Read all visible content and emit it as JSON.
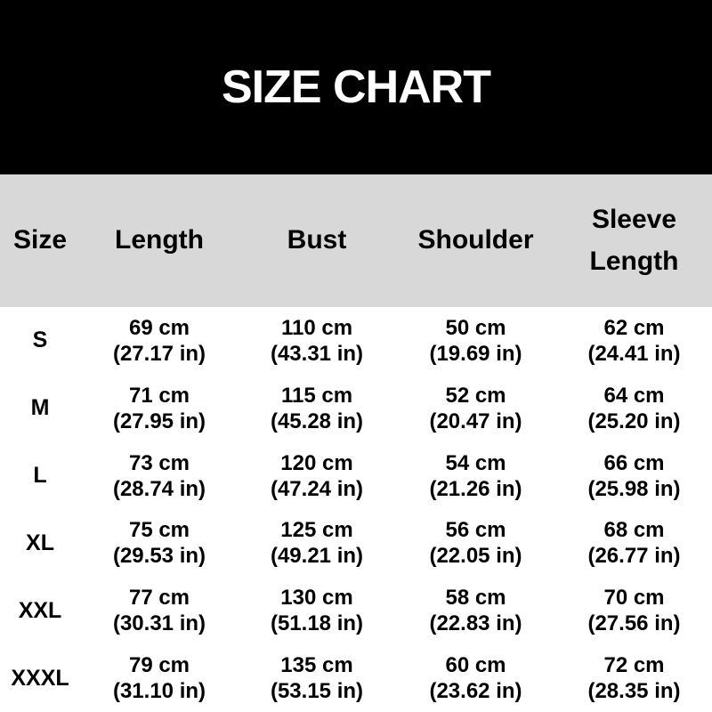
{
  "title": "SIZE CHART",
  "colors": {
    "banner_bg": "#000000",
    "banner_text": "#ffffff",
    "header_bg": "#d8d8d8",
    "body_bg": "#ffffff",
    "text": "#000000"
  },
  "table": {
    "headers": [
      "Size",
      "Length",
      "Bust",
      "Shoulder",
      "Sleeve Length"
    ],
    "rows": [
      {
        "size": "S",
        "length": {
          "cm": "69 cm",
          "in": "(27.17 in)"
        },
        "bust": {
          "cm": "110 cm",
          "in": "(43.31 in)"
        },
        "shoulder": {
          "cm": "50 cm",
          "in": "(19.69 in)"
        },
        "sleeve": {
          "cm": "62 cm",
          "in": "(24.41 in)"
        }
      },
      {
        "size": "M",
        "length": {
          "cm": "71 cm",
          "in": "(27.95 in)"
        },
        "bust": {
          "cm": "115 cm",
          "in": "(45.28 in)"
        },
        "shoulder": {
          "cm": "52 cm",
          "in": "(20.47 in)"
        },
        "sleeve": {
          "cm": "64 cm",
          "in": "(25.20 in)"
        }
      },
      {
        "size": "L",
        "length": {
          "cm": "73 cm",
          "in": "(28.74 in)"
        },
        "bust": {
          "cm": "120 cm",
          "in": "(47.24 in)"
        },
        "shoulder": {
          "cm": "54 cm",
          "in": "(21.26 in)"
        },
        "sleeve": {
          "cm": "66 cm",
          "in": "(25.98 in)"
        }
      },
      {
        "size": "XL",
        "length": {
          "cm": "75 cm",
          "in": "(29.53 in)"
        },
        "bust": {
          "cm": "125 cm",
          "in": "(49.21 in)"
        },
        "shoulder": {
          "cm": "56 cm",
          "in": "(22.05 in)"
        },
        "sleeve": {
          "cm": "68 cm",
          "in": "(26.77 in)"
        }
      },
      {
        "size": "XXL",
        "length": {
          "cm": "77 cm",
          "in": "(30.31 in)"
        },
        "bust": {
          "cm": "130 cm",
          "in": "(51.18 in)"
        },
        "shoulder": {
          "cm": "58 cm",
          "in": "(22.83 in)"
        },
        "sleeve": {
          "cm": "70 cm",
          "in": "(27.56 in)"
        }
      },
      {
        "size": "XXXL",
        "length": {
          "cm": "79 cm",
          "in": "(31.10 in)"
        },
        "bust": {
          "cm": "135 cm",
          "in": "(53.15 in)"
        },
        "shoulder": {
          "cm": "60 cm",
          "in": "(23.62 in)"
        },
        "sleeve": {
          "cm": "72 cm",
          "in": "(28.35 in)"
        }
      }
    ]
  }
}
